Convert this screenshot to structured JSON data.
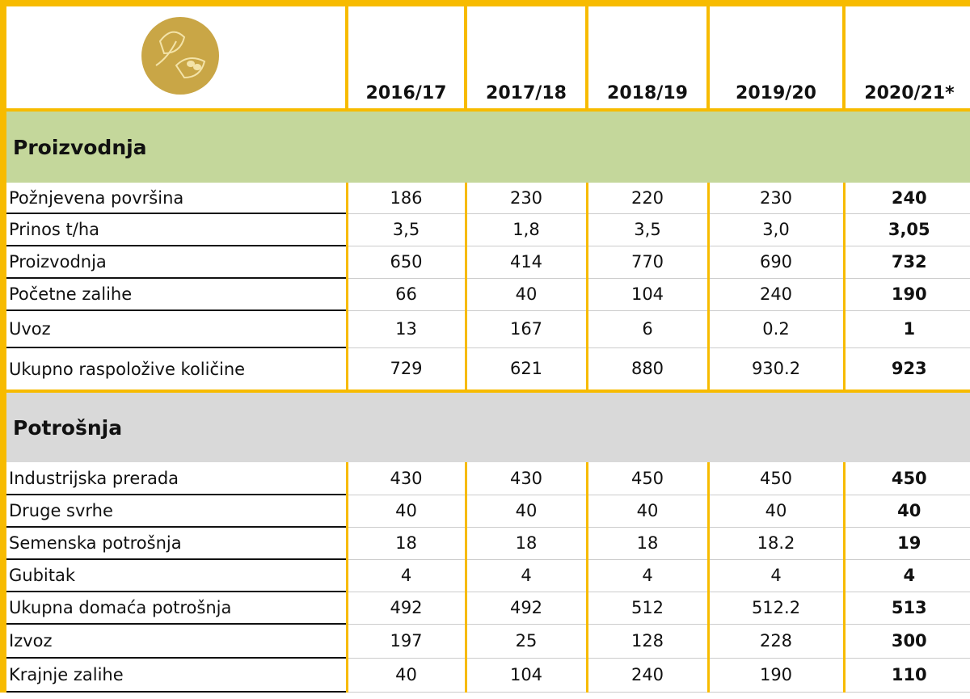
{
  "header": {
    "columns": [
      "2016/17",
      "2017/18",
      "2018/19",
      "2019/20",
      "2020/21*"
    ]
  },
  "sections": [
    {
      "title": "Proizvodnja",
      "rows": [
        {
          "label": "Požnjevena površina",
          "values": [
            "186",
            "230",
            "220",
            "230",
            "240"
          ]
        },
        {
          "label": "Prinos t/ha",
          "values": [
            "3,5",
            "1,8",
            "3,5",
            "3,0",
            "3,05"
          ]
        },
        {
          "label": "Proizvodnja",
          "values": [
            "650",
            "414",
            "770",
            "690",
            "732"
          ]
        },
        {
          "label": "Početne zalihe",
          "values": [
            "66",
            "40",
            "104",
            "240",
            "190"
          ]
        },
        {
          "label": "Uvoz",
          "values": [
            "13",
            "167",
            "6",
            "0.2",
            "1"
          ]
        },
        {
          "label": "Ukupno raspoložive količine",
          "values": [
            "729",
            "621",
            "880",
            "930.2",
            "923"
          ]
        }
      ]
    },
    {
      "title": "Potrošnja",
      "rows": [
        {
          "label": "Industrijska prerada",
          "values": [
            "430",
            "430",
            "450",
            "450",
            "450"
          ]
        },
        {
          "label": "Druge svrhe",
          "values": [
            "40",
            "40",
            "40",
            "40",
            "40"
          ]
        },
        {
          "label": "Semenska potrošnja",
          "values": [
            "18",
            "18",
            "18",
            "18.2",
            "19"
          ]
        },
        {
          "label": "Gubitak",
          "values": [
            "4",
            "4",
            "4",
            "4",
            "4"
          ]
        },
        {
          "label": "Ukupna domaća potrošnja",
          "values": [
            "492",
            "492",
            "512",
            "512.2",
            "513"
          ]
        },
        {
          "label": "Izvoz",
          "values": [
            "197",
            "25",
            "128",
            "228",
            "300"
          ]
        },
        {
          "label": "Krajnje zalihe",
          "values": [
            "40",
            "104",
            "240",
            "190",
            "110"
          ]
        }
      ]
    }
  ]
}
